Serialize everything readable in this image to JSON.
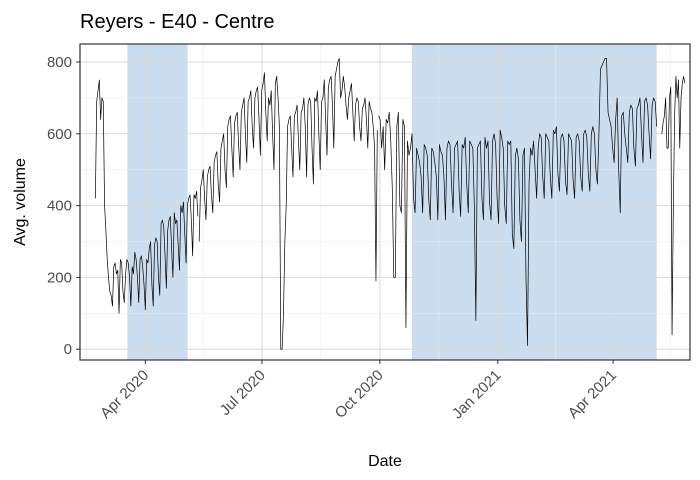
{
  "chart_data": {
    "type": "line",
    "title": "Reyers - E40 - Centre",
    "xlabel": "Date",
    "ylabel": "Avg. volume",
    "xlim": [
      "2020-02-10",
      "2021-05-31"
    ],
    "ylim": [
      -30,
      850
    ],
    "grid": true,
    "line_color": "#000000",
    "shade_color": "#a6c8e6",
    "x_ticks": [
      {
        "date": "2020-04-01",
        "label": "Apr 2020"
      },
      {
        "date": "2020-07-01",
        "label": "Jul 2020"
      },
      {
        "date": "2020-10-01",
        "label": "Oct 2020"
      },
      {
        "date": "2021-01-01",
        "label": "Jan 2021"
      },
      {
        "date": "2021-04-01",
        "label": "Apr 2021"
      }
    ],
    "y_ticks": [
      0,
      200,
      400,
      600,
      800
    ],
    "shaded_periods": [
      {
        "start": "2020-03-18",
        "end": "2020-05-04"
      },
      {
        "start": "2020-10-26",
        "end": "2021-05-05"
      }
    ],
    "series": [
      {
        "segments": [
          {
            "start": "2020-02-22",
            "end": "2020-05-12",
            "values": [
              420,
              690,
              720,
              750,
              640,
              700,
              690,
              400,
              330,
              250,
              200,
              160,
              150,
              120,
              230,
              240,
              210,
              220,
              100,
              250,
              240,
              160,
              130,
              210,
              250,
              240,
              200,
              120,
              230,
              210,
              270,
              250,
              200,
              130,
              250,
              260,
              230,
              180,
              110,
              250,
              240,
              280,
              300,
              180,
              120,
              290,
              310,
              300,
              200,
              150,
              350,
              360,
              340,
              260,
              170,
              330,
              360,
              370,
              280,
              200,
              380,
              350,
              360,
              290,
              220,
              400,
              380,
              410,
              320,
              240,
              400,
              420,
              430,
              360,
              260,
              430,
              420,
              440,
              370
            ]
          },
          {
            "start": "2020-05-13",
            "end": "2020-09-29",
            "values": [
              300,
              450,
              470,
              500,
              420,
              360,
              480,
              500,
              510,
              430,
              380,
              520,
              540,
              550,
              460,
              410,
              560,
              580,
              600,
              500,
              450,
              620,
              640,
              650,
              560,
              480,
              630,
              650,
              660,
              570,
              500,
              660,
              680,
              700,
              600,
              520,
              690,
              700,
              720,
              620,
              560,
              700,
              720,
              730,
              640,
              540,
              720,
              740,
              770,
              660,
              580,
              700,
              680,
              720,
              600,
              500,
              740,
              760,
              700,
              620,
              0,
              0,
              100,
              300,
              400,
              620,
              640,
              650,
              560,
              480,
              650,
              660,
              680,
              580,
              500,
              660,
              670,
              700,
              620,
              480,
              680,
              700,
              690,
              560,
              460,
              700,
              690,
              720,
              600,
              500,
              690,
              700,
              750,
              640,
              540,
              730,
              750,
              760,
              680,
              560,
              760,
              780,
              800,
              810,
              700,
              720,
              760,
              730,
              680,
              640,
              700,
              720,
              740,
              660,
              580,
              680,
              700,
              690,
              620,
              580,
              670,
              680,
              700,
              640,
              560,
              690,
              670,
              660,
              620,
              560,
              190,
              610
            ]
          },
          {
            "start": "2020-09-30",
            "end": "2021-05-05",
            "values": [
              650,
              640,
              560,
              620,
              500,
              640,
              630,
              660,
              580,
              450,
              200,
              200,
              620,
              660,
              400,
              380,
              640,
              620,
              60,
              580,
              540,
              560,
              600,
              420,
              380,
              560,
              540,
              520,
              480,
              380,
              570,
              560,
              540,
              420,
              360,
              560,
              550,
              520,
              480,
              360,
              570,
              550,
              540,
              480,
              360,
              560,
              580,
              570,
              460,
              380,
              560,
              570,
              580,
              440,
              370,
              570,
              560,
              590,
              460,
              380,
              580,
              570,
              560,
              400,
              80,
              560,
              570,
              580,
              420,
              360,
              590,
              560,
              580,
              410,
              360,
              580,
              600,
              570,
              420,
              350,
              610,
              590,
              560,
              400,
              350,
              580,
              570,
              580,
              320,
              280,
              540,
              560,
              530,
              360,
              300,
              540,
              560,
              200,
              10,
              460,
              560,
              540,
              580,
              500,
              420,
              560,
              600,
              590,
              480,
              420,
              600,
              590,
              580,
              480,
              420,
              610,
              600,
              620,
              490,
              440,
              590,
              600,
              580,
              470,
              430,
              600,
              590,
              580,
              470,
              420,
              590,
              600,
              580,
              480,
              440,
              600,
              610,
              590,
              490,
              440,
              600,
              620,
              600,
              500,
              460,
              600,
              780,
              790,
              800,
              810,
              810,
              660,
              640,
              620,
              560,
              520,
              640,
              700,
              500,
              380,
              650,
              660,
              600,
              560,
              520,
              660,
              680,
              670,
              560,
              510,
              670,
              680,
              700,
              600,
              520,
              690,
              700,
              680,
              600,
              530,
              680,
              700,
              690,
              620
            ]
          },
          {
            "start": "2021-05-09",
            "end": "2021-05-27",
            "values": [
              600,
              630,
              650,
              700,
              560,
              560,
              700,
              730,
              40,
              400,
              650,
              760,
              700,
              750,
              560,
              700,
              740,
              760,
              740
            ]
          }
        ]
      }
    ]
  }
}
